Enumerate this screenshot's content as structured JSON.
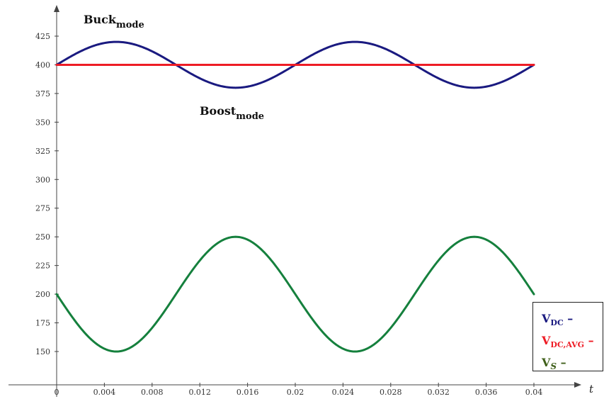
{
  "chart_data": {
    "type": "line",
    "xlabel": "t",
    "ylabel": "",
    "xlim": [
      0,
      0.04
    ],
    "ylim": [
      125,
      440
    ],
    "x_ticks": [
      "0",
      "0.004",
      "0.008",
      "0.012",
      "0.016",
      "0.02",
      "0.024",
      "0.028",
      "0.032",
      "0.036",
      "0.04"
    ],
    "y_ticks": [
      "150",
      "175",
      "200",
      "225",
      "250",
      "275",
      "300",
      "325",
      "350",
      "375",
      "400",
      "425"
    ],
    "grid": false,
    "legend_position": "bottom-right",
    "series": [
      {
        "key": "vdc",
        "label_main": "V",
        "label_sub": "DC",
        "label_suffix": " –",
        "color": "#1a1a80",
        "x": [
          0,
          0.0025,
          0.005,
          0.0075,
          0.01,
          0.0125,
          0.015,
          0.0175,
          0.02,
          0.0225,
          0.025,
          0.0275,
          0.03,
          0.0325,
          0.035,
          0.0375,
          0.04
        ],
        "y": [
          400,
          414.1,
          420,
          414.1,
          400,
          385.9,
          380,
          385.9,
          400,
          414.1,
          420,
          414.1,
          400,
          385.9,
          380,
          385.9,
          400
        ]
      },
      {
        "key": "vdcavg",
        "label_main": "V",
        "label_sub": "DC,AVG",
        "label_suffix": " –",
        "color": "#ee1c25",
        "x": [
          0,
          0.04
        ],
        "y": [
          400,
          400
        ]
      },
      {
        "key": "vs",
        "label_main": "V",
        "label_sub": "S",
        "label_suffix": " –",
        "color": "#15803d",
        "x": [
          0,
          0.0025,
          0.005,
          0.0075,
          0.01,
          0.0125,
          0.015,
          0.0175,
          0.02,
          0.0225,
          0.025,
          0.0275,
          0.03,
          0.0325,
          0.035,
          0.0375,
          0.04
        ],
        "y": [
          200,
          164.6,
          150,
          164.6,
          200,
          235.4,
          250,
          235.4,
          200,
          164.6,
          150,
          164.6,
          200,
          235.4,
          250,
          235.4,
          200
        ]
      }
    ],
    "annotations": [
      {
        "key": "buck",
        "main": "Buck",
        "sub": "mode"
      },
      {
        "key": "boost",
        "main": "Boost",
        "sub": "mode"
      }
    ]
  }
}
